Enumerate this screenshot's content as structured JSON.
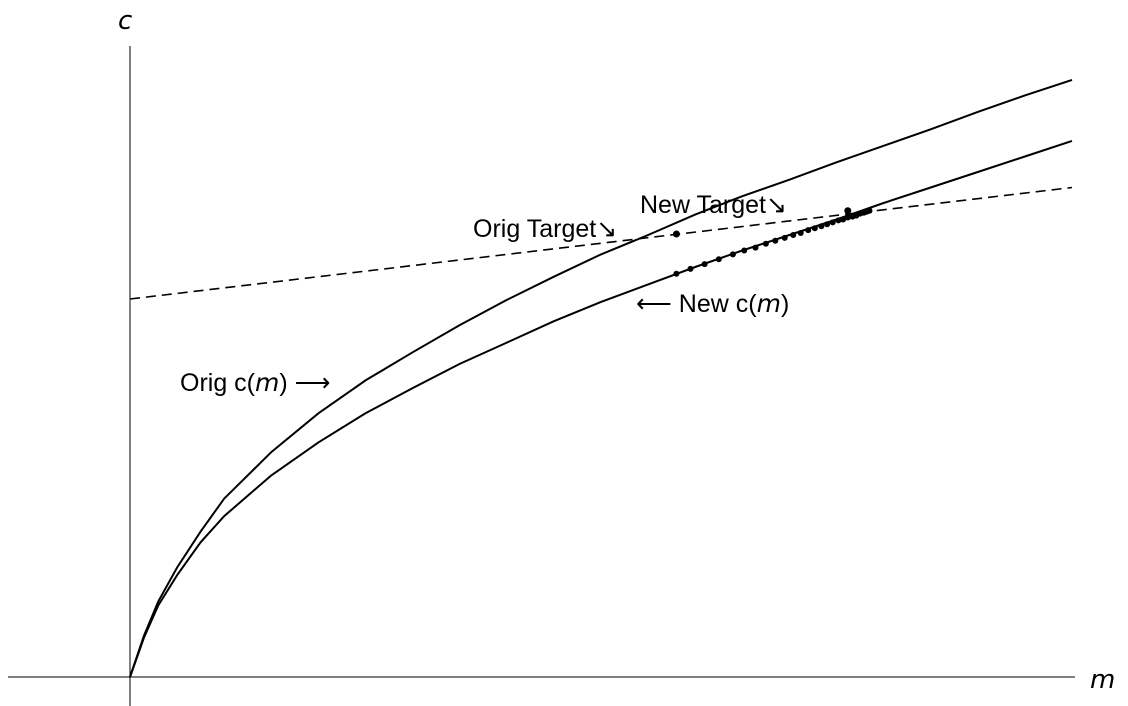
{
  "chart_data": {
    "type": "line",
    "title": "",
    "xlabel": "m",
    "ylabel": "c",
    "xlim": [
      0,
      10
    ],
    "ylim": [
      0,
      6.2
    ],
    "grid": false,
    "legend": "none",
    "series": [
      {
        "name": "Orig c(m)",
        "style": "solid",
        "x": [
          0,
          0.15,
          0.3,
          0.5,
          0.75,
          1.0,
          1.5,
          2.0,
          2.5,
          3.0,
          3.5,
          4.0,
          4.5,
          5.0,
          5.5,
          6.0,
          6.5,
          7.0,
          7.5,
          8.0,
          8.5,
          9.0,
          9.5,
          10.0
        ],
        "y": [
          0,
          0.43,
          0.78,
          1.13,
          1.5,
          1.84,
          2.32,
          2.72,
          3.06,
          3.35,
          3.63,
          3.89,
          4.13,
          4.36,
          4.56,
          4.77,
          4.96,
          5.13,
          5.31,
          5.48,
          5.65,
          5.83,
          6.0,
          6.16
        ]
      },
      {
        "name": "New c(m)",
        "style": "solid",
        "x": [
          0,
          0.15,
          0.3,
          0.5,
          0.75,
          1.0,
          1.5,
          2.0,
          2.5,
          3.0,
          3.5,
          4.0,
          4.5,
          5.0,
          5.5,
          6.0,
          6.5,
          7.0,
          7.5,
          8.0,
          8.5,
          9.0,
          9.5,
          10.0
        ],
        "y": [
          0,
          0.41,
          0.74,
          1.05,
          1.39,
          1.66,
          2.08,
          2.42,
          2.72,
          2.98,
          3.23,
          3.45,
          3.67,
          3.87,
          4.05,
          4.23,
          4.4,
          4.56,
          4.72,
          4.89,
          5.05,
          5.21,
          5.37,
          5.53
        ]
      },
      {
        "name": "",
        "style": "dashed",
        "x": [
          0,
          10.0
        ],
        "y": [
          3.9,
          5.05
        ]
      }
    ],
    "iterates": {
      "x": [
        5.8,
        5.95,
        6.1,
        6.25,
        6.4,
        6.52,
        6.64,
        6.75,
        6.85,
        6.95,
        7.04,
        7.12,
        7.2,
        7.27,
        7.34,
        7.4,
        7.46,
        7.52,
        7.57,
        7.62,
        7.67,
        7.71,
        7.75,
        7.79,
        7.82,
        7.85
      ],
      "y": [
        4.16,
        4.21,
        4.26,
        4.31,
        4.36,
        4.4,
        4.43,
        4.47,
        4.5,
        4.53,
        4.56,
        4.58,
        4.61,
        4.63,
        4.65,
        4.67,
        4.69,
        4.71,
        4.72,
        4.74,
        4.75,
        4.76,
        4.78,
        4.79,
        4.8,
        4.81
      ]
    },
    "points": [
      {
        "name": "Orig Target",
        "x": 5.8,
        "y": 4.57
      },
      {
        "name": "New Target",
        "x": 7.62,
        "y": 4.81
      }
    ],
    "annotations": [
      {
        "text": "Orig Target",
        "arrow": "↘"
      },
      {
        "text": "New Target",
        "arrow": "↘"
      },
      {
        "text": "Orig c(m)",
        "arrow": "⟶",
        "italic": "m"
      },
      {
        "text": "New c(m)",
        "arrow": "⟵",
        "italic": "m"
      }
    ]
  }
}
